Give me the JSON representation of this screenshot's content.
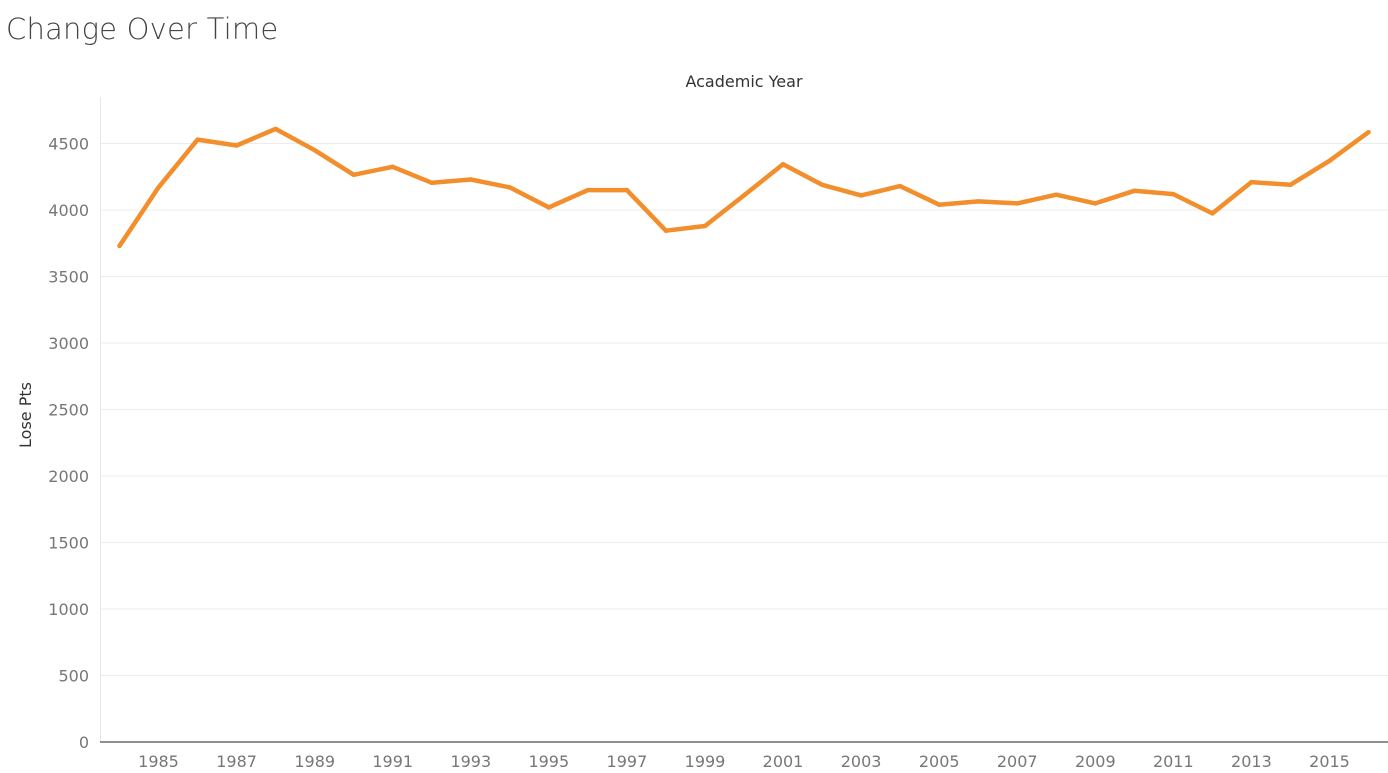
{
  "title": "Change Over Time",
  "chart_data": {
    "type": "line",
    "title": "Change Over Time",
    "xlabel": "Academic Year",
    "ylabel": "Lose Pts",
    "x": [
      1984,
      1985,
      1986,
      1987,
      1988,
      1989,
      1990,
      1991,
      1992,
      1993,
      1994,
      1995,
      1996,
      1997,
      1998,
      1999,
      2000,
      2001,
      2002,
      2003,
      2004,
      2005,
      2006,
      2007,
      2008,
      2009,
      2010,
      2011,
      2012,
      2013,
      2014,
      2015,
      2016
    ],
    "series": [
      {
        "values": [
          3730,
          4170,
          4530,
          4485,
          4610,
          4450,
          4265,
          4325,
          4205,
          4230,
          4170,
          4020,
          4150,
          4150,
          3845,
          3880,
          4110,
          4345,
          4190,
          4110,
          4180,
          4040,
          4065,
          4050,
          4115,
          4050,
          4145,
          4120,
          3975,
          4210,
          4190,
          4370,
          4585
        ],
        "color": "#F28E2B"
      }
    ],
    "xticks": [
      "1985",
      "1987",
      "1989",
      "1991",
      "1993",
      "1995",
      "1997",
      "1999",
      "2001",
      "2003",
      "2005",
      "2007",
      "2009",
      "2011",
      "2013",
      "2015"
    ],
    "yticks": [
      "0",
      "500",
      "1000",
      "1500",
      "2000",
      "2500",
      "3000",
      "3500",
      "4000",
      "4500"
    ],
    "ylim": [
      0,
      4850
    ],
    "xlim": [
      1983.5,
      2016.5
    ],
    "grid": true
  }
}
